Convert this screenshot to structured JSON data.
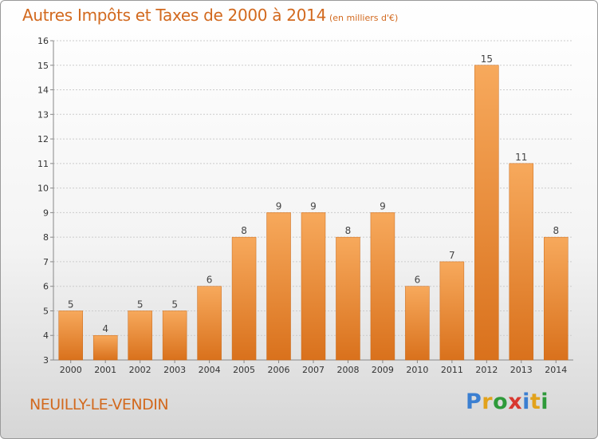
{
  "header": {
    "title": "Autres Impôts et Taxes de 2000 à 2014",
    "subtitle": "(en milliers d'€)"
  },
  "footer": {
    "commune": "NEUILLY-LE-VENDIN",
    "logo_letters": [
      "P",
      "r",
      "o",
      "x",
      "i",
      "t",
      "i"
    ],
    "logo_colors": [
      "#3b7fd1",
      "#e2a21b",
      "#2e9a3a",
      "#d8382f",
      "#3b7fd1",
      "#e2a21b",
      "#2e9a3a"
    ]
  },
  "chart_data": {
    "type": "bar",
    "categories": [
      "2000",
      "2001",
      "2002",
      "2003",
      "2004",
      "2005",
      "2006",
      "2007",
      "2008",
      "2009",
      "2010",
      "2011",
      "2012",
      "2013",
      "2014"
    ],
    "values": [
      5,
      4,
      5,
      5,
      6,
      8,
      9,
      9,
      8,
      9,
      6,
      7,
      15,
      11,
      8
    ],
    "value_labels": [
      "5",
      "4",
      "5",
      "5",
      "6",
      "8",
      "9",
      "9",
      "8",
      "9",
      "6",
      "7",
      "15",
      "11",
      "8"
    ],
    "yticks": [
      "3",
      "4",
      "5",
      "6",
      "7",
      "8",
      "9",
      "10",
      "11",
      "12",
      "13",
      "14",
      "15",
      "16"
    ],
    "ylim": [
      3,
      16
    ],
    "grid": true,
    "bar_color_top": "#f7a95c",
    "bar_color_bottom": "#d9711c",
    "grid_color": "#cccccc"
  }
}
